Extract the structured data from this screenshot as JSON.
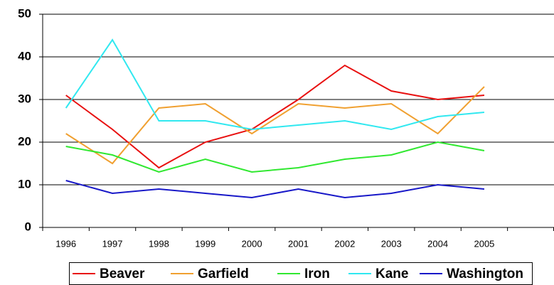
{
  "chart_data": {
    "type": "line",
    "categories": [
      "1996",
      "1997",
      "1998",
      "1999",
      "2000",
      "2001",
      "2002",
      "2003",
      "2004",
      "2005"
    ],
    "series": [
      {
        "name": "Beaver",
        "color": "#e81010",
        "values": [
          31,
          23,
          14,
          20,
          23,
          30,
          38,
          32,
          30,
          31
        ]
      },
      {
        "name": "Garfield",
        "color": "#f0a030",
        "values": [
          22,
          15,
          28,
          29,
          22,
          29,
          28,
          29,
          22,
          33
        ]
      },
      {
        "name": "Iron",
        "color": "#30e830",
        "values": [
          19,
          17,
          13,
          16,
          13,
          14,
          16,
          17,
          20,
          18
        ]
      },
      {
        "name": "Kane",
        "color": "#30e8f0",
        "values": [
          28,
          44,
          25,
          25,
          23,
          24,
          25,
          23,
          26,
          27
        ]
      },
      {
        "name": "Washington",
        "color": "#1818c8",
        "values": [
          11,
          8,
          9,
          8,
          7,
          9,
          7,
          8,
          10,
          9
        ]
      }
    ],
    "ylim": [
      0,
      50
    ],
    "yticks": [
      0,
      10,
      20,
      30,
      40,
      50
    ],
    "grid": true,
    "legend": "bottom"
  }
}
